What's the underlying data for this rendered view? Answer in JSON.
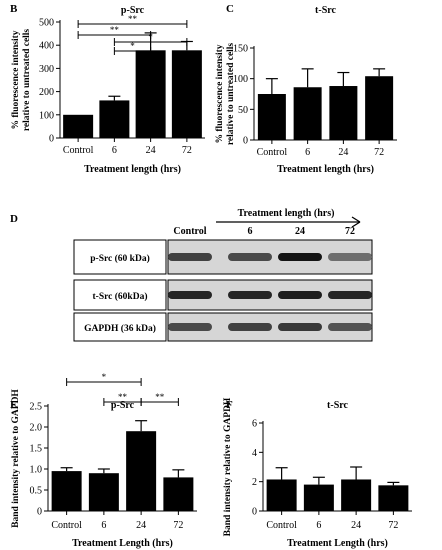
{
  "panels": {
    "B": {
      "letter": "B",
      "chart_data": {
        "type": "bar",
        "title": "p-Src",
        "categories": [
          "Control",
          "6",
          "24",
          "72"
        ],
        "values": [
          100,
          162,
          378,
          378
        ],
        "errors": [
          0,
          18,
          75,
          38
        ],
        "ylim": [
          0,
          500
        ],
        "yticks": [
          "0",
          "100",
          "200",
          "300",
          "400",
          "500"
        ],
        "ylabel": "% fluorescence intensity relative to untreated cells",
        "ylabel_lines": [
          "% fluorescence intensity",
          "relative to untreated cells"
        ],
        "xlabel": "Treatment length (hrs)",
        "significance": [
          {
            "from": 0,
            "to": 3,
            "label": "**"
          },
          {
            "from": 0,
            "to": 2,
            "label": "**"
          },
          {
            "from": 1,
            "to": 3,
            "label": "*"
          },
          {
            "from": 1,
            "to": 2,
            "label": "*"
          }
        ]
      }
    },
    "C": {
      "letter": "C",
      "chart_data": {
        "type": "bar",
        "title": "t-Src",
        "categories": [
          "Control",
          "6",
          "24",
          "72"
        ],
        "values": [
          75,
          86,
          88,
          104
        ],
        "errors": [
          25,
          30,
          22,
          12
        ],
        "ylim": [
          0,
          150
        ],
        "yticks": [
          "0",
          "50",
          "100",
          "150"
        ],
        "ylabel": "% fluorescence intensity relative to untreated cells",
        "ylabel_lines": [
          "% fluorescence intensity",
          "relative to untreated cells"
        ],
        "xlabel": "Treatment length (hrs)",
        "significance": []
      }
    },
    "E": {
      "letter": "E",
      "chart_data": {
        "type": "bar",
        "title": "p-Src",
        "categories": [
          "Control",
          "6",
          "24",
          "72"
        ],
        "values": [
          0.95,
          0.9,
          1.9,
          0.8
        ],
        "errors": [
          0.08,
          0.1,
          0.25,
          0.18
        ],
        "ylim": [
          0,
          2.5
        ],
        "yticks": [
          "0",
          "0.5",
          "1.0",
          "1.5",
          "2.0",
          "2.5"
        ],
        "ylabel": "Band intensity relative to GAPDH",
        "ylabel_lines": [
          "Band intensity relative to GAPDH"
        ],
        "xlabel": "Treatment Length (hrs)",
        "significance": [
          {
            "from": 0,
            "to": 2,
            "label": "*"
          },
          {
            "from": 1,
            "to": 2,
            "label": "**"
          },
          {
            "from": 2,
            "to": 3,
            "label": "**"
          }
        ]
      }
    },
    "F": {
      "letter": "F",
      "chart_data": {
        "type": "bar",
        "title": "t-Src",
        "categories": [
          "Control",
          "6",
          "24",
          "72"
        ],
        "values": [
          2.15,
          1.8,
          2.15,
          1.75
        ],
        "errors": [
          0.8,
          0.5,
          0.85,
          0.2
        ],
        "ylim": [
          0,
          6
        ],
        "yticks": [
          "0",
          "2",
          "4",
          "6"
        ],
        "ylabel": "Band intensity relative to GAPDH",
        "ylabel_lines": [
          "Band intensity relative to GAPDH"
        ],
        "xlabel": "Treatment Length (hrs)",
        "significance": []
      }
    }
  },
  "blot": {
    "letter": "D",
    "header": "Treatment length (hrs)",
    "columns": [
      "Control",
      "6",
      "24",
      "72"
    ],
    "rows": [
      {
        "label": "p-Src (60 kDa)",
        "intensity": [
          0.75,
          0.7,
          1.0,
          0.5
        ]
      },
      {
        "label": "t-Src (60kDa)",
        "intensity": [
          0.9,
          0.9,
          0.95,
          0.9
        ]
      },
      {
        "label": "GAPDH (36 kDa)",
        "intensity": [
          0.7,
          0.75,
          0.8,
          0.65
        ]
      }
    ]
  }
}
